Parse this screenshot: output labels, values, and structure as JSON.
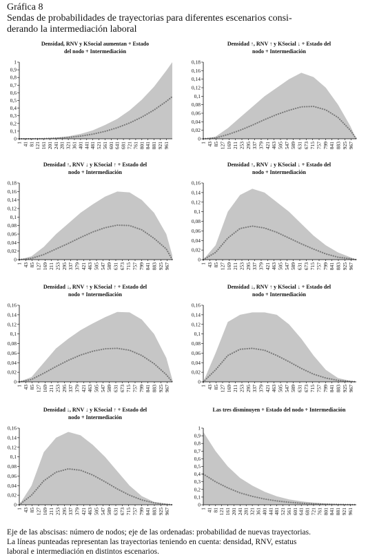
{
  "header": {
    "label": "Gráfica 8",
    "title": [
      "Sendas de probabilidades de trayectorias para diferentes escenarios consi-",
      "derando la intermediación laboral"
    ]
  },
  "footer": [
    "Eje de las abscisas: número de nodos; eje de las ordenadas: probabilidad de nuevas trayectorias.",
    "La líneas punteadas representan las trayectorias teniendo en cuenta: densidad, RNV, estatus",
    "laboral e intermediación en distintos escenarios."
  ],
  "chart_data": [
    {
      "type": "area",
      "title": [
        "Densidad,  RNV y KSocial aumentan + Estado",
        "del nodo + Intermediación"
      ],
      "x": [
        1,
        81,
        161,
        241,
        321,
        401,
        481,
        561,
        641,
        721,
        801,
        881,
        961,
        1000
      ],
      "series": [
        {
          "color": "#c6c6c6",
          "values": [
            0,
            0.0005,
            0.004,
            0.014,
            0.033,
            0.064,
            0.11,
            0.18,
            0.26,
            0.37,
            0.51,
            0.68,
            0.89,
            1
          ]
        },
        {
          "color": "#7a7a7a",
          "style": "dotted",
          "values": [
            0,
            0.0003,
            0.002,
            0.008,
            0.018,
            0.035,
            0.061,
            0.097,
            0.145,
            0.206,
            0.283,
            0.376,
            0.488,
            0.55
          ]
        }
      ],
      "xlim": [
        1,
        1000
      ],
      "xticks": [
        1,
        41,
        81,
        121,
        161,
        201,
        241,
        281,
        321,
        361,
        401,
        441,
        481,
        521,
        561,
        601,
        641,
        681,
        721,
        761,
        801,
        841,
        881,
        921,
        961
      ],
      "ylim": [
        0,
        1
      ],
      "yticks": [
        0,
        {
          "value": 0.1,
          "label": "0,1"
        },
        {
          "value": 0.2,
          "label": "0,2"
        },
        {
          "value": 0.3,
          "label": "0,3"
        },
        {
          "value": 0.4,
          "label": "0,4"
        },
        {
          "value": 0.5,
          "label": "0,5"
        },
        {
          "value": 0.6,
          "label": "0,6"
        },
        {
          "value": 0.7,
          "label": "0,7"
        },
        {
          "value": 0.8,
          "label": "0,8"
        },
        {
          "value": 0.9,
          "label": "0,9"
        },
        1
      ]
    },
    {
      "type": "area",
      "title": [
        "Densidad ↑, RNV ↑ y KSocial ↓ + Estado del",
        "nodo + Intermediación"
      ],
      "x": [
        1,
        81,
        161,
        241,
        321,
        401,
        481,
        561,
        641,
        721,
        801,
        881,
        961,
        1000
      ],
      "series": [
        {
          "color": "#c6c6c6",
          "values": [
            0,
            0.005,
            0.025,
            0.05,
            0.075,
            0.1,
            0.12,
            0.14,
            0.155,
            0.145,
            0.12,
            0.08,
            0.03,
            0
          ]
        },
        {
          "color": "#7a7a7a",
          "style": "dotted",
          "values": [
            0,
            0.002,
            0.01,
            0.02,
            0.032,
            0.045,
            0.057,
            0.067,
            0.075,
            0.076,
            0.068,
            0.05,
            0.02,
            0
          ]
        }
      ],
      "xlim": [
        1,
        1000
      ],
      "xticks": [
        1,
        43,
        85,
        127,
        169,
        211,
        253,
        295,
        337,
        379,
        421,
        463,
        505,
        547,
        589,
        631,
        673,
        715,
        757,
        799,
        841,
        883,
        925,
        967
      ],
      "ylim": [
        0,
        0.18
      ],
      "yticks": [
        0,
        {
          "value": 0.02,
          "label": "0,02"
        },
        {
          "value": 0.04,
          "label": "0,04"
        },
        {
          "value": 0.06,
          "label": "0,06"
        },
        {
          "value": 0.08,
          "label": "0,08"
        },
        {
          "value": 0.1,
          "label": "0,1"
        },
        {
          "value": 0.12,
          "label": "0,12"
        },
        {
          "value": 0.14,
          "label": "0,14"
        },
        {
          "value": 0.16,
          "label": "0,16"
        },
        {
          "value": 0.18,
          "label": "0,18"
        }
      ]
    },
    {
      "type": "area",
      "title": [
        "Densidad ↑, RNV ↓ y KSocial ↑ + Estado del",
        "nodo + Intermediación"
      ],
      "x": [
        1,
        81,
        161,
        241,
        321,
        401,
        481,
        561,
        641,
        721,
        801,
        881,
        961,
        1000
      ],
      "series": [
        {
          "color": "#c6c6c6",
          "values": [
            0,
            0.008,
            0.03,
            0.06,
            0.085,
            0.11,
            0.13,
            0.148,
            0.16,
            0.158,
            0.14,
            0.11,
            0.06,
            0.01
          ]
        },
        {
          "color": "#7a7a7a",
          "style": "dotted",
          "values": [
            0,
            0.003,
            0.012,
            0.025,
            0.038,
            0.052,
            0.065,
            0.075,
            0.081,
            0.08,
            0.07,
            0.05,
            0.025,
            0
          ]
        }
      ],
      "xlim": [
        1,
        1000
      ],
      "xticks": [
        1,
        43,
        85,
        127,
        169,
        211,
        253,
        295,
        337,
        379,
        421,
        463,
        505,
        547,
        589,
        631,
        673,
        715,
        757,
        799,
        841,
        883,
        925,
        967
      ],
      "ylim": [
        0,
        0.18
      ],
      "yticks": [
        0,
        {
          "value": 0.02,
          "label": "0,02"
        },
        {
          "value": 0.04,
          "label": "0,04"
        },
        {
          "value": 0.06,
          "label": "0,06"
        },
        {
          "value": 0.08,
          "label": "0,08"
        },
        {
          "value": 0.1,
          "label": "0,1"
        },
        {
          "value": 0.12,
          "label": "0,12"
        },
        {
          "value": 0.14,
          "label": "0,14"
        },
        {
          "value": 0.16,
          "label": "0,16"
        },
        {
          "value": 0.18,
          "label": "0,18"
        }
      ]
    },
    {
      "type": "area",
      "title": [
        "Densidad ↑, RNV ↓ y KSocial ↓ + Estado del",
        "nodo + Intermediación"
      ],
      "x": [
        1,
        81,
        161,
        241,
        321,
        401,
        481,
        561,
        641,
        721,
        801,
        881,
        961,
        1000
      ],
      "series": [
        {
          "color": "#c6c6c6",
          "values": [
            0,
            0.03,
            0.1,
            0.135,
            0.148,
            0.14,
            0.12,
            0.1,
            0.075,
            0.05,
            0.03,
            0.015,
            0.005,
            0
          ]
        },
        {
          "color": "#7a7a7a",
          "style": "dotted",
          "values": [
            0,
            0.015,
            0.045,
            0.065,
            0.07,
            0.066,
            0.057,
            0.045,
            0.033,
            0.022,
            0.012,
            0.005,
            0.002,
            0
          ]
        }
      ],
      "xlim": [
        1,
        1000
      ],
      "xticks": [
        1,
        43,
        85,
        127,
        169,
        211,
        253,
        295,
        337,
        379,
        421,
        463,
        505,
        547,
        589,
        631,
        673,
        715,
        757,
        799,
        841,
        883,
        925,
        967
      ],
      "ylim": [
        0,
        0.16
      ],
      "yticks": [
        0,
        {
          "value": 0.02,
          "label": "0,02"
        },
        {
          "value": 0.04,
          "label": "0,04"
        },
        {
          "value": 0.06,
          "label": "0,06"
        },
        {
          "value": 0.08,
          "label": "0,08"
        },
        {
          "value": 0.1,
          "label": "0,1"
        },
        {
          "value": 0.12,
          "label": "0,12"
        },
        {
          "value": 0.14,
          "label": "0,14"
        },
        {
          "value": 0.16,
          "label": "0,16"
        }
      ]
    },
    {
      "type": "area",
      "title": [
        "Densidad ↓, RNV ↑ y KSocial ↑ + Estado del",
        "nodo + Intermediación"
      ],
      "x": [
        1,
        81,
        161,
        241,
        321,
        401,
        481,
        561,
        641,
        721,
        801,
        881,
        961,
        1000
      ],
      "series": [
        {
          "color": "#c6c6c6",
          "values": [
            0,
            0.01,
            0.04,
            0.07,
            0.09,
            0.108,
            0.122,
            0.135,
            0.146,
            0.145,
            0.13,
            0.1,
            0.05,
            0.005
          ]
        },
        {
          "color": "#7a7a7a",
          "style": "dotted",
          "values": [
            0,
            0.005,
            0.018,
            0.032,
            0.045,
            0.056,
            0.064,
            0.069,
            0.07,
            0.066,
            0.055,
            0.038,
            0.015,
            0
          ]
        }
      ],
      "xlim": [
        1,
        1000
      ],
      "xticks": [
        1,
        43,
        85,
        127,
        169,
        211,
        253,
        295,
        337,
        379,
        421,
        463,
        505,
        547,
        589,
        631,
        673,
        715,
        757,
        799,
        841,
        883,
        925,
        967
      ],
      "ylim": [
        0,
        0.16
      ],
      "yticks": [
        0,
        {
          "value": 0.02,
          "label": "0,02"
        },
        {
          "value": 0.04,
          "label": "0,04"
        },
        {
          "value": 0.06,
          "label": "0,06"
        },
        {
          "value": 0.08,
          "label": "0,08"
        },
        {
          "value": 0.1,
          "label": "0,1"
        },
        {
          "value": 0.12,
          "label": "0,12"
        },
        {
          "value": 0.14,
          "label": "0,14"
        },
        {
          "value": 0.16,
          "label": "0,16"
        }
      ]
    },
    {
      "type": "area",
      "title": [
        "Densidad ↓, RNV ↑ y KSocial ↓ + Estado del",
        "nodo + Intermediación"
      ],
      "x": [
        1,
        81,
        161,
        241,
        321,
        401,
        481,
        561,
        641,
        721,
        801,
        881,
        961,
        1000
      ],
      "series": [
        {
          "color": "#c6c6c6",
          "values": [
            0,
            0.06,
            0.125,
            0.14,
            0.145,
            0.145,
            0.14,
            0.12,
            0.09,
            0.055,
            0.025,
            0.008,
            0.002,
            0
          ]
        },
        {
          "color": "#7a7a7a",
          "style": "dotted",
          "values": [
            0,
            0.025,
            0.055,
            0.068,
            0.07,
            0.066,
            0.055,
            0.042,
            0.028,
            0.016,
            0.008,
            0.003,
            0.001,
            0
          ]
        }
      ],
      "xlim": [
        1,
        1000
      ],
      "xticks": [
        1,
        43,
        85,
        127,
        169,
        211,
        253,
        295,
        337,
        379,
        421,
        463,
        505,
        547,
        589,
        631,
        673,
        715,
        757,
        799,
        841,
        883,
        925,
        967
      ],
      "ylim": [
        0,
        0.16
      ],
      "yticks": [
        0,
        {
          "value": 0.02,
          "label": "0,02"
        },
        {
          "value": 0.04,
          "label": "0,04"
        },
        {
          "value": 0.06,
          "label": "0,06"
        },
        {
          "value": 0.08,
          "label": "0,08"
        },
        {
          "value": 0.1,
          "label": "0,1"
        },
        {
          "value": 0.12,
          "label": "0,12"
        },
        {
          "value": 0.14,
          "label": "0,14"
        },
        {
          "value": 0.16,
          "label": "0,16"
        }
      ]
    },
    {
      "type": "area",
      "title": [
        "Densidad ↓, RNV ↓ y KSocial ↑ + Estado del",
        "nodo + Intermediación"
      ],
      "x": [
        1,
        81,
        161,
        241,
        321,
        401,
        481,
        561,
        641,
        721,
        801,
        881,
        961,
        1000
      ],
      "series": [
        {
          "color": "#c6c6c6",
          "values": [
            0,
            0.04,
            0.11,
            0.14,
            0.152,
            0.145,
            0.125,
            0.1,
            0.07,
            0.04,
            0.018,
            0.006,
            0.002,
            0
          ]
        },
        {
          "color": "#7a7a7a",
          "style": "dotted",
          "values": [
            0,
            0.02,
            0.05,
            0.068,
            0.075,
            0.072,
            0.062,
            0.048,
            0.033,
            0.02,
            0.01,
            0.004,
            0.001,
            0
          ]
        }
      ],
      "xlim": [
        1,
        1000
      ],
      "xticks": [
        1,
        43,
        85,
        127,
        169,
        211,
        253,
        295,
        337,
        379,
        421,
        463,
        505,
        547,
        589,
        631,
        673,
        715,
        757,
        799,
        841,
        883,
        925,
        967
      ],
      "ylim": [
        0,
        0.16
      ],
      "yticks": [
        0,
        {
          "value": 0.02,
          "label": "0,02"
        },
        {
          "value": 0.04,
          "label": "0,04"
        },
        {
          "value": 0.06,
          "label": "0,06"
        },
        {
          "value": 0.08,
          "label": "0,08"
        },
        {
          "value": 0.1,
          "label": "0,1"
        },
        {
          "value": 0.12,
          "label": "0,12"
        },
        {
          "value": 0.14,
          "label": "0,14"
        },
        {
          "value": 0.16,
          "label": "0,16"
        }
      ]
    },
    {
      "type": "area",
      "title": [
        "Las tres disminuyen + Estado del nodo + Intermediación"
      ],
      "x": [
        1,
        81,
        161,
        241,
        321,
        401,
        481,
        561,
        641,
        721,
        801,
        881,
        961,
        1000
      ],
      "series": [
        {
          "color": "#c6c6c6",
          "values": [
            0.95,
            0.7,
            0.5,
            0.35,
            0.25,
            0.17,
            0.11,
            0.07,
            0.045,
            0.028,
            0.017,
            0.01,
            0.005,
            0.003
          ]
        },
        {
          "color": "#7a7a7a",
          "style": "dotted",
          "values": [
            0.4,
            0.3,
            0.22,
            0.155,
            0.11,
            0.075,
            0.05,
            0.032,
            0.02,
            0.012,
            0.007,
            0.004,
            0.002,
            0.001
          ]
        }
      ],
      "xlim": [
        1,
        1000
      ],
      "xticks": [
        1,
        41,
        81,
        121,
        161,
        201,
        241,
        281,
        321,
        361,
        401,
        441,
        481,
        521,
        561,
        601,
        641,
        681,
        721,
        761,
        801,
        841,
        881,
        921,
        961
      ],
      "ylim": [
        0,
        1
      ],
      "yticks": [
        0,
        {
          "value": 0.1,
          "label": "0,1"
        },
        {
          "value": 0.2,
          "label": "0,2"
        },
        {
          "value": 0.3,
          "label": "0,3"
        },
        {
          "value": 0.4,
          "label": "0,4"
        },
        {
          "value": 0.5,
          "label": "0,5"
        },
        {
          "value": 0.6,
          "label": "0,6"
        },
        {
          "value": 0.7,
          "label": "0,7"
        },
        {
          "value": 0.8,
          "label": "0,8"
        },
        {
          "value": 0.9,
          "label": "0,9"
        },
        1
      ]
    }
  ]
}
